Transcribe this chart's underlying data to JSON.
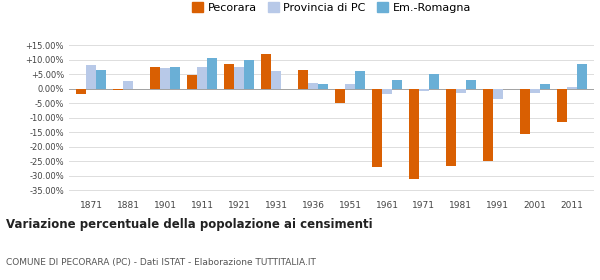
{
  "years": [
    1871,
    1881,
    1901,
    1911,
    1921,
    1931,
    1936,
    1951,
    1961,
    1971,
    1981,
    1991,
    2001,
    2011
  ],
  "pecorara": [
    -2.0,
    -0.5,
    7.5,
    4.5,
    8.5,
    12.0,
    6.5,
    -5.0,
    -27.0,
    -31.0,
    -26.5,
    -25.0,
    -15.5,
    -11.5
  ],
  "provincia_pc": [
    8.0,
    2.5,
    7.0,
    7.5,
    7.5,
    6.0,
    2.0,
    1.5,
    -2.0,
    -1.0,
    -1.5,
    -3.5,
    -1.5,
    0.5
  ],
  "em_romagna": [
    6.5,
    null,
    7.5,
    10.5,
    10.0,
    null,
    1.5,
    6.0,
    3.0,
    5.0,
    3.0,
    null,
    1.5,
    8.5
  ],
  "pecorara_color": "#d95f02",
  "provincia_color": "#b8c9e8",
  "em_romagna_color": "#6aafd6",
  "background_color": "#ffffff",
  "grid_color": "#dddddd",
  "ylim": [
    -37,
    17
  ],
  "yticks": [
    -35,
    -30,
    -25,
    -20,
    -15,
    -10,
    -5,
    0,
    5,
    10,
    15
  ],
  "ytick_labels": [
    "-35.00%",
    "-30.00%",
    "-25.00%",
    "-20.00%",
    "-15.00%",
    "-10.00%",
    "-5.00%",
    "0.00%",
    "+5.00%",
    "+10.00%",
    "+15.00%"
  ],
  "title": "Variazione percentuale della popolazione ai censimenti",
  "subtitle": "COMUNE DI PECORARA (PC) - Dati ISTAT - Elaborazione TUTTITALIA.IT",
  "legend_labels": [
    "Pecorara",
    "Provincia di PC",
    "Em.-Romagna"
  ],
  "bar_width": 0.27
}
